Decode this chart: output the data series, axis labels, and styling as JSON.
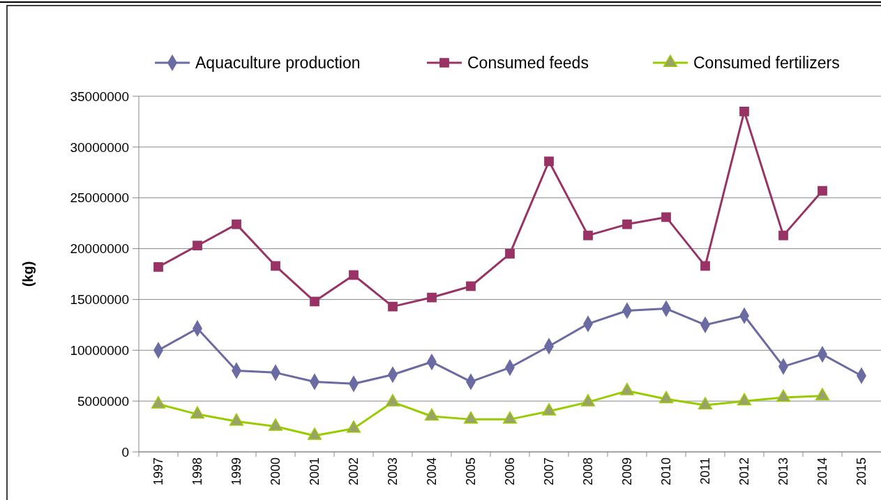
{
  "chart_data": {
    "type": "line",
    "ylabel": "(kg)",
    "categories": [
      "1997",
      "1998",
      "1999",
      "2000",
      "2001",
      "2002",
      "2003",
      "2004",
      "2005",
      "2006",
      "2007",
      "2008",
      "2009",
      "2010",
      "2011",
      "2012",
      "2013",
      "2014",
      "2015"
    ],
    "series": [
      {
        "name": "Aquaculture production",
        "color": "#6b6ba3",
        "marker": "diamond",
        "values": [
          10000000,
          12150000,
          8000000,
          7800000,
          6900000,
          6700000,
          7600000,
          8850000,
          6900000,
          8300000,
          10400000,
          12600000,
          13900000,
          14100000,
          12500000,
          13400000,
          8400000,
          9600000,
          7500000
        ]
      },
      {
        "name": "Consumed feeds",
        "color": "#993366",
        "marker": "square",
        "values": [
          18200000,
          20300000,
          22400000,
          18300000,
          14800000,
          17400000,
          14300000,
          15200000,
          16300000,
          19500000,
          28600000,
          21300000,
          22400000,
          23100000,
          18300000,
          33500000,
          21300000,
          25700000,
          null
        ]
      },
      {
        "name": "Consumed fertilizers",
        "color": "#99cc00",
        "marker": "triangle",
        "values": [
          4700000,
          3700000,
          3000000,
          2500000,
          1600000,
          2300000,
          4900000,
          3500000,
          3200000,
          3200000,
          4000000,
          4900000,
          6000000,
          5200000,
          4600000,
          5000000,
          5350000,
          5500000,
          null
        ]
      }
    ],
    "ylim": [
      0,
      35000000
    ],
    "yticks": [
      0,
      5000000,
      10000000,
      15000000,
      20000000,
      25000000,
      30000000,
      35000000
    ],
    "grid": "y",
    "legend": "top",
    "line_style": "solid"
  }
}
